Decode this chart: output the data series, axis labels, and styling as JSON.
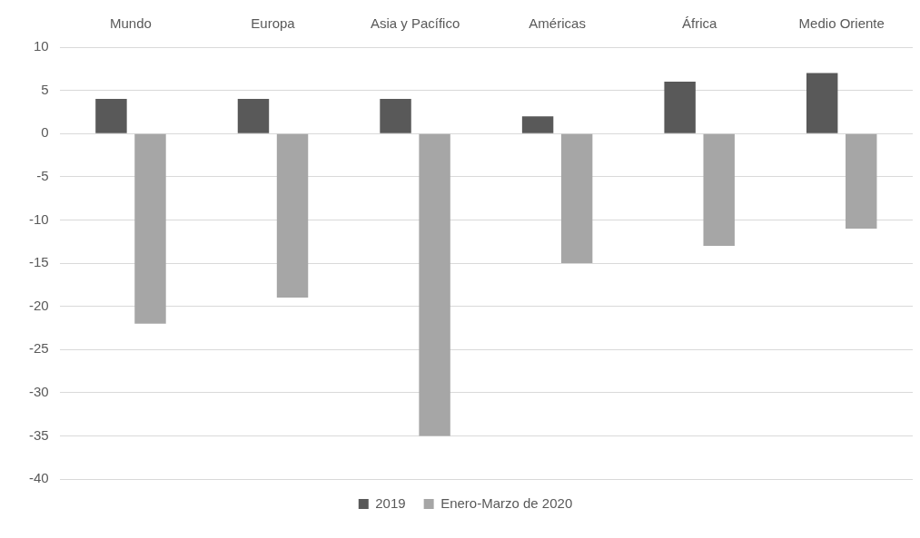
{
  "chart_data": {
    "type": "bar",
    "categories": [
      "Mundo",
      "Europa",
      "Asia y Pacífico",
      "Américas",
      "África",
      "Medio Oriente"
    ],
    "series": [
      {
        "name": "2019",
        "color": "#595959",
        "values": [
          4,
          4,
          4,
          2,
          6,
          7
        ]
      },
      {
        "name": "Enero-Marzo de 2020",
        "color": "#a6a6a6",
        "values": [
          -22,
          -19,
          -35,
          -15,
          -13,
          -11
        ]
      }
    ],
    "ylim": [
      -40,
      10
    ],
    "yticks": [
      -40,
      -35,
      -30,
      -25,
      -20,
      -15,
      -10,
      -5,
      0,
      5,
      10
    ],
    "grid": "y",
    "legend": "bottom"
  }
}
